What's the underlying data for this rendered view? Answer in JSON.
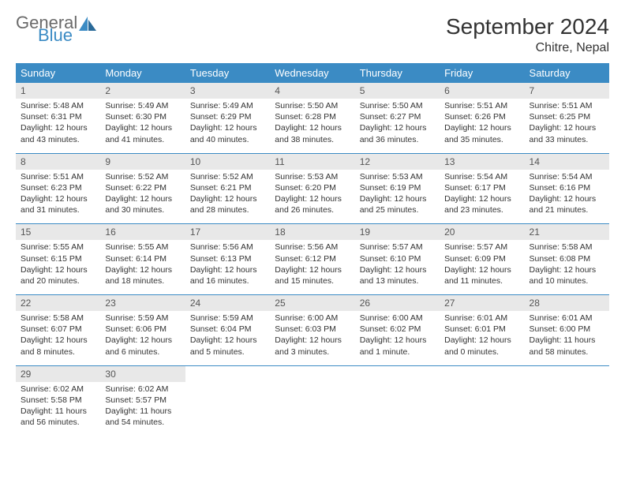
{
  "brand": {
    "part1": "General",
    "part2": "Blue"
  },
  "title": "September 2024",
  "location": "Chitre, Nepal",
  "colors": {
    "header_bg": "#3b8bc4",
    "header_text": "#ffffff",
    "daynum_bg": "#e8e8e8",
    "text": "#333333",
    "brand_gray": "#6a6a6a",
    "brand_blue": "#3b8bc4"
  },
  "dow": [
    "Sunday",
    "Monday",
    "Tuesday",
    "Wednesday",
    "Thursday",
    "Friday",
    "Saturday"
  ],
  "weeks": [
    {
      "nums": [
        "1",
        "2",
        "3",
        "4",
        "5",
        "6",
        "7"
      ],
      "cells": [
        {
          "sunrise": "Sunrise: 5:48 AM",
          "sunset": "Sunset: 6:31 PM",
          "day1": "Daylight: 12 hours",
          "day2": "and 43 minutes."
        },
        {
          "sunrise": "Sunrise: 5:49 AM",
          "sunset": "Sunset: 6:30 PM",
          "day1": "Daylight: 12 hours",
          "day2": "and 41 minutes."
        },
        {
          "sunrise": "Sunrise: 5:49 AM",
          "sunset": "Sunset: 6:29 PM",
          "day1": "Daylight: 12 hours",
          "day2": "and 40 minutes."
        },
        {
          "sunrise": "Sunrise: 5:50 AM",
          "sunset": "Sunset: 6:28 PM",
          "day1": "Daylight: 12 hours",
          "day2": "and 38 minutes."
        },
        {
          "sunrise": "Sunrise: 5:50 AM",
          "sunset": "Sunset: 6:27 PM",
          "day1": "Daylight: 12 hours",
          "day2": "and 36 minutes."
        },
        {
          "sunrise": "Sunrise: 5:51 AM",
          "sunset": "Sunset: 6:26 PM",
          "day1": "Daylight: 12 hours",
          "day2": "and 35 minutes."
        },
        {
          "sunrise": "Sunrise: 5:51 AM",
          "sunset": "Sunset: 6:25 PM",
          "day1": "Daylight: 12 hours",
          "day2": "and 33 minutes."
        }
      ]
    },
    {
      "nums": [
        "8",
        "9",
        "10",
        "11",
        "12",
        "13",
        "14"
      ],
      "cells": [
        {
          "sunrise": "Sunrise: 5:51 AM",
          "sunset": "Sunset: 6:23 PM",
          "day1": "Daylight: 12 hours",
          "day2": "and 31 minutes."
        },
        {
          "sunrise": "Sunrise: 5:52 AM",
          "sunset": "Sunset: 6:22 PM",
          "day1": "Daylight: 12 hours",
          "day2": "and 30 minutes."
        },
        {
          "sunrise": "Sunrise: 5:52 AM",
          "sunset": "Sunset: 6:21 PM",
          "day1": "Daylight: 12 hours",
          "day2": "and 28 minutes."
        },
        {
          "sunrise": "Sunrise: 5:53 AM",
          "sunset": "Sunset: 6:20 PM",
          "day1": "Daylight: 12 hours",
          "day2": "and 26 minutes."
        },
        {
          "sunrise": "Sunrise: 5:53 AM",
          "sunset": "Sunset: 6:19 PM",
          "day1": "Daylight: 12 hours",
          "day2": "and 25 minutes."
        },
        {
          "sunrise": "Sunrise: 5:54 AM",
          "sunset": "Sunset: 6:17 PM",
          "day1": "Daylight: 12 hours",
          "day2": "and 23 minutes."
        },
        {
          "sunrise": "Sunrise: 5:54 AM",
          "sunset": "Sunset: 6:16 PM",
          "day1": "Daylight: 12 hours",
          "day2": "and 21 minutes."
        }
      ]
    },
    {
      "nums": [
        "15",
        "16",
        "17",
        "18",
        "19",
        "20",
        "21"
      ],
      "cells": [
        {
          "sunrise": "Sunrise: 5:55 AM",
          "sunset": "Sunset: 6:15 PM",
          "day1": "Daylight: 12 hours",
          "day2": "and 20 minutes."
        },
        {
          "sunrise": "Sunrise: 5:55 AM",
          "sunset": "Sunset: 6:14 PM",
          "day1": "Daylight: 12 hours",
          "day2": "and 18 minutes."
        },
        {
          "sunrise": "Sunrise: 5:56 AM",
          "sunset": "Sunset: 6:13 PM",
          "day1": "Daylight: 12 hours",
          "day2": "and 16 minutes."
        },
        {
          "sunrise": "Sunrise: 5:56 AM",
          "sunset": "Sunset: 6:12 PM",
          "day1": "Daylight: 12 hours",
          "day2": "and 15 minutes."
        },
        {
          "sunrise": "Sunrise: 5:57 AM",
          "sunset": "Sunset: 6:10 PM",
          "day1": "Daylight: 12 hours",
          "day2": "and 13 minutes."
        },
        {
          "sunrise": "Sunrise: 5:57 AM",
          "sunset": "Sunset: 6:09 PM",
          "day1": "Daylight: 12 hours",
          "day2": "and 11 minutes."
        },
        {
          "sunrise": "Sunrise: 5:58 AM",
          "sunset": "Sunset: 6:08 PM",
          "day1": "Daylight: 12 hours",
          "day2": "and 10 minutes."
        }
      ]
    },
    {
      "nums": [
        "22",
        "23",
        "24",
        "25",
        "26",
        "27",
        "28"
      ],
      "cells": [
        {
          "sunrise": "Sunrise: 5:58 AM",
          "sunset": "Sunset: 6:07 PM",
          "day1": "Daylight: 12 hours",
          "day2": "and 8 minutes."
        },
        {
          "sunrise": "Sunrise: 5:59 AM",
          "sunset": "Sunset: 6:06 PM",
          "day1": "Daylight: 12 hours",
          "day2": "and 6 minutes."
        },
        {
          "sunrise": "Sunrise: 5:59 AM",
          "sunset": "Sunset: 6:04 PM",
          "day1": "Daylight: 12 hours",
          "day2": "and 5 minutes."
        },
        {
          "sunrise": "Sunrise: 6:00 AM",
          "sunset": "Sunset: 6:03 PM",
          "day1": "Daylight: 12 hours",
          "day2": "and 3 minutes."
        },
        {
          "sunrise": "Sunrise: 6:00 AM",
          "sunset": "Sunset: 6:02 PM",
          "day1": "Daylight: 12 hours",
          "day2": "and 1 minute."
        },
        {
          "sunrise": "Sunrise: 6:01 AM",
          "sunset": "Sunset: 6:01 PM",
          "day1": "Daylight: 12 hours",
          "day2": "and 0 minutes."
        },
        {
          "sunrise": "Sunrise: 6:01 AM",
          "sunset": "Sunset: 6:00 PM",
          "day1": "Daylight: 11 hours",
          "day2": "and 58 minutes."
        }
      ]
    },
    {
      "nums": [
        "29",
        "30",
        "",
        "",
        "",
        "",
        ""
      ],
      "cells": [
        {
          "sunrise": "Sunrise: 6:02 AM",
          "sunset": "Sunset: 5:58 PM",
          "day1": "Daylight: 11 hours",
          "day2": "and 56 minutes."
        },
        {
          "sunrise": "Sunrise: 6:02 AM",
          "sunset": "Sunset: 5:57 PM",
          "day1": "Daylight: 11 hours",
          "day2": "and 54 minutes."
        },
        null,
        null,
        null,
        null,
        null
      ]
    }
  ]
}
